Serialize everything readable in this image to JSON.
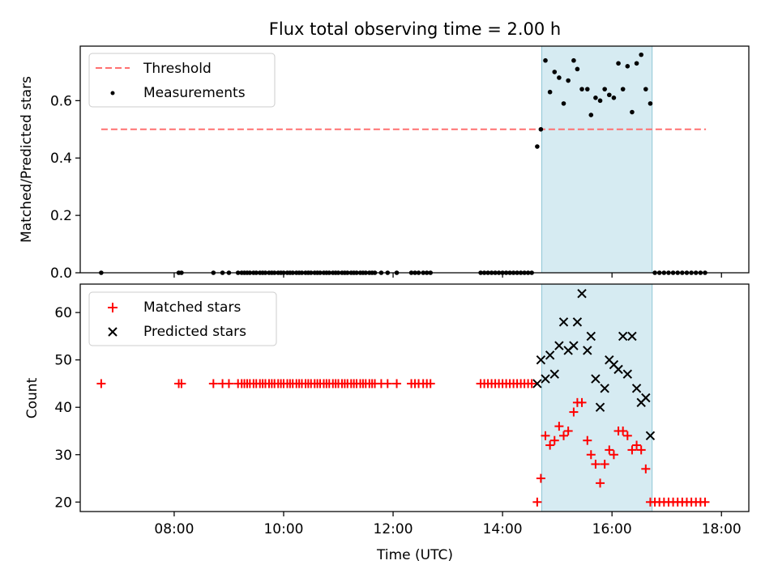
{
  "figure": {
    "title": "Flux total observing time = 2.00 h",
    "xlabel": "Time (UTC)",
    "xticks": [
      "08:00",
      "10:00",
      "12:00",
      "14:00",
      "16:00",
      "18:00"
    ]
  },
  "chart_data": [
    {
      "type": "scatter",
      "panel": "top",
      "ylabel": "Matched/Predicted stars",
      "xlim": [
        "06:17",
        "18:30"
      ],
      "ylim": [
        0,
        0.79
      ],
      "yticks": [
        "0.0",
        "0.2",
        "0.4",
        "0.6"
      ],
      "legend_position": "top-left",
      "highlight_span": {
        "start": "14:43",
        "end": "16:44",
        "color": "#add8e6"
      },
      "threshold": {
        "name": "Threshold",
        "value": 0.5,
        "x_start": "06:40",
        "x_end": "17:43",
        "color": "#ff7070",
        "style": "dashed"
      },
      "series": [
        {
          "name": "Measurements",
          "color": "#000000",
          "points": [
            [
              "06:40",
              0
            ],
            [
              "08:05",
              0
            ],
            [
              "08:08",
              0
            ],
            [
              "08:43",
              0
            ],
            [
              "08:53",
              0
            ],
            [
              "09:00",
              0
            ],
            [
              "09:10",
              0
            ],
            [
              "09:14",
              0
            ],
            [
              "09:17",
              0
            ],
            [
              "09:20",
              0
            ],
            [
              "09:23",
              0
            ],
            [
              "09:27",
              0
            ],
            [
              "09:30",
              0
            ],
            [
              "09:34",
              0
            ],
            [
              "09:37",
              0
            ],
            [
              "09:40",
              0
            ],
            [
              "09:44",
              0
            ],
            [
              "09:47",
              0
            ],
            [
              "09:50",
              0
            ],
            [
              "09:54",
              0
            ],
            [
              "09:57",
              0
            ],
            [
              "10:00",
              0
            ],
            [
              "10:04",
              0
            ],
            [
              "10:07",
              0
            ],
            [
              "10:10",
              0
            ],
            [
              "10:14",
              0
            ],
            [
              "10:17",
              0
            ],
            [
              "10:20",
              0
            ],
            [
              "10:24",
              0
            ],
            [
              "10:27",
              0
            ],
            [
              "10:30",
              0
            ],
            [
              "10:34",
              0
            ],
            [
              "10:37",
              0
            ],
            [
              "10:40",
              0
            ],
            [
              "10:44",
              0
            ],
            [
              "10:47",
              0
            ],
            [
              "10:50",
              0
            ],
            [
              "10:54",
              0
            ],
            [
              "10:57",
              0
            ],
            [
              "11:00",
              0
            ],
            [
              "11:04",
              0
            ],
            [
              "11:07",
              0
            ],
            [
              "11:10",
              0
            ],
            [
              "11:14",
              0
            ],
            [
              "11:17",
              0
            ],
            [
              "11:20",
              0
            ],
            [
              "11:24",
              0
            ],
            [
              "11:27",
              0
            ],
            [
              "11:30",
              0
            ],
            [
              "11:34",
              0
            ],
            [
              "11:37",
              0
            ],
            [
              "11:40",
              0
            ],
            [
              "11:47",
              0
            ],
            [
              "11:54",
              0
            ],
            [
              "12:04",
              0
            ],
            [
              "12:20",
              0
            ],
            [
              "12:24",
              0
            ],
            [
              "12:28",
              0
            ],
            [
              "12:33",
              0
            ],
            [
              "12:37",
              0
            ],
            [
              "12:41",
              0
            ],
            [
              "13:36",
              0
            ],
            [
              "13:40",
              0
            ],
            [
              "13:44",
              0
            ],
            [
              "13:48",
              0
            ],
            [
              "13:52",
              0
            ],
            [
              "13:56",
              0
            ],
            [
              "14:00",
              0
            ],
            [
              "14:04",
              0
            ],
            [
              "14:08",
              0
            ],
            [
              "14:12",
              0
            ],
            [
              "14:16",
              0
            ],
            [
              "14:20",
              0
            ],
            [
              "14:24",
              0
            ],
            [
              "14:28",
              0
            ],
            [
              "14:32",
              0
            ],
            [
              "14:38",
              0.44
            ],
            [
              "14:42",
              0.5
            ],
            [
              "14:47",
              0.74
            ],
            [
              "14:52",
              0.63
            ],
            [
              "14:57",
              0.7
            ],
            [
              "15:02",
              0.68
            ],
            [
              "15:07",
              0.59
            ],
            [
              "15:12",
              0.67
            ],
            [
              "15:18",
              0.74
            ],
            [
              "15:22",
              0.71
            ],
            [
              "15:27",
              0.64
            ],
            [
              "15:33",
              0.64
            ],
            [
              "15:37",
              0.55
            ],
            [
              "15:42",
              0.61
            ],
            [
              "15:47",
              0.6
            ],
            [
              "15:52",
              0.64
            ],
            [
              "15:57",
              0.62
            ],
            [
              "16:02",
              0.61
            ],
            [
              "16:07",
              0.73
            ],
            [
              "16:12",
              0.64
            ],
            [
              "16:17",
              0.72
            ],
            [
              "16:22",
              0.56
            ],
            [
              "16:27",
              0.73
            ],
            [
              "16:32",
              0.76
            ],
            [
              "16:37",
              0.64
            ],
            [
              "16:42",
              0.59
            ],
            [
              "16:47",
              0
            ],
            [
              "16:52",
              0
            ],
            [
              "16:57",
              0
            ],
            [
              "17:02",
              0
            ],
            [
              "17:07",
              0
            ],
            [
              "17:12",
              0
            ],
            [
              "17:17",
              0
            ],
            [
              "17:22",
              0
            ],
            [
              "17:27",
              0
            ],
            [
              "17:32",
              0
            ],
            [
              "17:37",
              0
            ],
            [
              "17:42",
              0
            ]
          ]
        }
      ]
    },
    {
      "type": "scatter",
      "panel": "bottom",
      "ylabel": "Count",
      "xlabel": "Time (UTC)",
      "xlim": [
        "06:17",
        "18:30"
      ],
      "ylim": [
        18,
        66
      ],
      "yticks": [
        "20",
        "30",
        "40",
        "50",
        "60"
      ],
      "legend_position": "top-left",
      "highlight_span": {
        "start": "14:43",
        "end": "16:44",
        "color": "#add8e6"
      },
      "series": [
        {
          "name": "Matched stars",
          "marker": "plus",
          "color": "#ff0000",
          "points": [
            [
              "06:40",
              45
            ],
            [
              "08:05",
              45
            ],
            [
              "08:08",
              45
            ],
            [
              "08:43",
              45
            ],
            [
              "08:53",
              45
            ],
            [
              "09:00",
              45
            ],
            [
              "09:10",
              45
            ],
            [
              "09:14",
              45
            ],
            [
              "09:17",
              45
            ],
            [
              "09:20",
              45
            ],
            [
              "09:23",
              45
            ],
            [
              "09:27",
              45
            ],
            [
              "09:30",
              45
            ],
            [
              "09:34",
              45
            ],
            [
              "09:37",
              45
            ],
            [
              "09:40",
              45
            ],
            [
              "09:44",
              45
            ],
            [
              "09:47",
              45
            ],
            [
              "09:50",
              45
            ],
            [
              "09:54",
              45
            ],
            [
              "09:57",
              45
            ],
            [
              "10:00",
              45
            ],
            [
              "10:04",
              45
            ],
            [
              "10:07",
              45
            ],
            [
              "10:10",
              45
            ],
            [
              "10:14",
              45
            ],
            [
              "10:17",
              45
            ],
            [
              "10:20",
              45
            ],
            [
              "10:24",
              45
            ],
            [
              "10:27",
              45
            ],
            [
              "10:30",
              45
            ],
            [
              "10:34",
              45
            ],
            [
              "10:37",
              45
            ],
            [
              "10:40",
              45
            ],
            [
              "10:44",
              45
            ],
            [
              "10:47",
              45
            ],
            [
              "10:50",
              45
            ],
            [
              "10:54",
              45
            ],
            [
              "10:57",
              45
            ],
            [
              "11:00",
              45
            ],
            [
              "11:04",
              45
            ],
            [
              "11:07",
              45
            ],
            [
              "11:10",
              45
            ],
            [
              "11:14",
              45
            ],
            [
              "11:17",
              45
            ],
            [
              "11:20",
              45
            ],
            [
              "11:24",
              45
            ],
            [
              "11:27",
              45
            ],
            [
              "11:30",
              45
            ],
            [
              "11:34",
              45
            ],
            [
              "11:37",
              45
            ],
            [
              "11:40",
              45
            ],
            [
              "11:47",
              45
            ],
            [
              "11:54",
              45
            ],
            [
              "12:04",
              45
            ],
            [
              "12:20",
              45
            ],
            [
              "12:24",
              45
            ],
            [
              "12:28",
              45
            ],
            [
              "12:33",
              45
            ],
            [
              "12:37",
              45
            ],
            [
              "12:41",
              45
            ],
            [
              "13:36",
              45
            ],
            [
              "13:40",
              45
            ],
            [
              "13:44",
              45
            ],
            [
              "13:48",
              45
            ],
            [
              "13:52",
              45
            ],
            [
              "13:56",
              45
            ],
            [
              "14:00",
              45
            ],
            [
              "14:04",
              45
            ],
            [
              "14:08",
              45
            ],
            [
              "14:12",
              45
            ],
            [
              "14:16",
              45
            ],
            [
              "14:20",
              45
            ],
            [
              "14:24",
              45
            ],
            [
              "14:28",
              45
            ],
            [
              "14:32",
              45
            ],
            [
              "14:38",
              20
            ],
            [
              "14:42",
              25
            ],
            [
              "14:47",
              34
            ],
            [
              "14:52",
              32
            ],
            [
              "14:57",
              33
            ],
            [
              "15:02",
              36
            ],
            [
              "15:07",
              34
            ],
            [
              "15:12",
              35
            ],
            [
              "15:18",
              39
            ],
            [
              "15:22",
              41
            ],
            [
              "15:27",
              41
            ],
            [
              "15:33",
              33
            ],
            [
              "15:37",
              30
            ],
            [
              "15:42",
              28
            ],
            [
              "15:47",
              24
            ],
            [
              "15:52",
              28
            ],
            [
              "15:57",
              31
            ],
            [
              "16:02",
              30
            ],
            [
              "16:07",
              35
            ],
            [
              "16:12",
              35
            ],
            [
              "16:17",
              34
            ],
            [
              "16:22",
              31
            ],
            [
              "16:27",
              32
            ],
            [
              "16:32",
              31
            ],
            [
              "16:37",
              27
            ],
            [
              "16:42",
              20
            ],
            [
              "16:47",
              20
            ],
            [
              "16:52",
              20
            ],
            [
              "16:57",
              20
            ],
            [
              "17:02",
              20
            ],
            [
              "17:07",
              20
            ],
            [
              "17:12",
              20
            ],
            [
              "17:17",
              20
            ],
            [
              "17:22",
              20
            ],
            [
              "17:27",
              20
            ],
            [
              "17:32",
              20
            ],
            [
              "17:37",
              20
            ],
            [
              "17:42",
              20
            ]
          ]
        },
        {
          "name": "Predicted stars",
          "marker": "x",
          "color": "#000000",
          "points": [
            [
              "14:38",
              45
            ],
            [
              "14:42",
              50
            ],
            [
              "14:47",
              46
            ],
            [
              "14:52",
              51
            ],
            [
              "14:57",
              47
            ],
            [
              "15:02",
              53
            ],
            [
              "15:07",
              58
            ],
            [
              "15:12",
              52
            ],
            [
              "15:18",
              53
            ],
            [
              "15:22",
              58
            ],
            [
              "15:27",
              64
            ],
            [
              "15:33",
              52
            ],
            [
              "15:37",
              55
            ],
            [
              "15:42",
              46
            ],
            [
              "15:47",
              40
            ],
            [
              "15:52",
              44
            ],
            [
              "15:57",
              50
            ],
            [
              "16:02",
              49
            ],
            [
              "16:07",
              48
            ],
            [
              "16:12",
              55
            ],
            [
              "16:17",
              47
            ],
            [
              "16:22",
              55
            ],
            [
              "16:27",
              44
            ],
            [
              "16:32",
              41
            ],
            [
              "16:37",
              42
            ],
            [
              "16:42",
              34
            ]
          ]
        }
      ]
    }
  ]
}
